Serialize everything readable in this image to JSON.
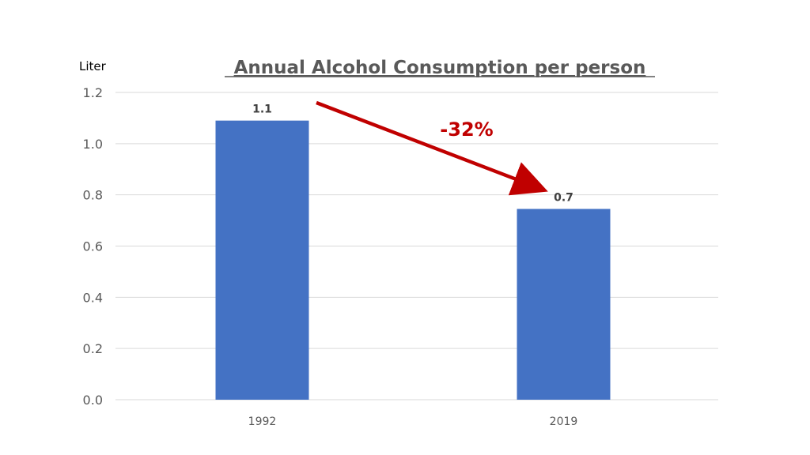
{
  "chart_data": {
    "type": "bar",
    "title": "Annual Alcohol Consumption per person",
    "ylabel": "Liter",
    "xlabel": "",
    "categories": [
      "1992",
      "2019"
    ],
    "values": [
      1.09,
      0.745
    ],
    "data_labels": [
      "1.1",
      "0.7"
    ],
    "ylim": [
      0,
      1.2
    ],
    "yticks": [
      "0.0",
      "0.2",
      "0.4",
      "0.6",
      "0.8",
      "1.0",
      "1.2"
    ],
    "grid": true,
    "legend": "none",
    "bar_color": "#4472c4",
    "annotation": {
      "text": "-32%",
      "color": "#c00000",
      "arrow": "from 1992 bar to 2019 bar"
    }
  }
}
